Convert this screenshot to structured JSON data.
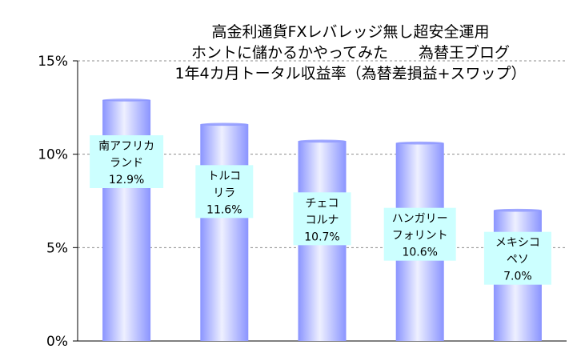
{
  "chart_data": {
    "type": "bar",
    "title_lines": [
      "高金利通貨FXレバレッジ無し超安全運用",
      "ホントに儲かるかやってみた　　為替王ブログ",
      "1年4カ月トータル収益率（為替差損益+スワップ）"
    ],
    "categories": [
      [
        "南アフリカ",
        "ランド"
      ],
      [
        "トルコ",
        "リラ"
      ],
      [
        "チェコ",
        "コルナ"
      ],
      [
        "ハンガリー",
        "フォリント"
      ],
      [
        "メキシコ",
        "ペソ"
      ]
    ],
    "values": [
      12.9,
      11.6,
      10.7,
      10.6,
      7.0
    ],
    "value_labels": [
      "12.9%",
      "11.6%",
      "10.7%",
      "10.6%",
      "7.0%"
    ],
    "yticks": [
      "0%",
      "5%",
      "10%",
      "15%"
    ],
    "ytick_values": [
      0,
      5,
      10,
      15
    ],
    "ylim": [
      0,
      15
    ],
    "grid": true,
    "bar_color": "#8a94ff",
    "bar_highlight": "#eef0ff",
    "label_bg": "#ccffff"
  }
}
